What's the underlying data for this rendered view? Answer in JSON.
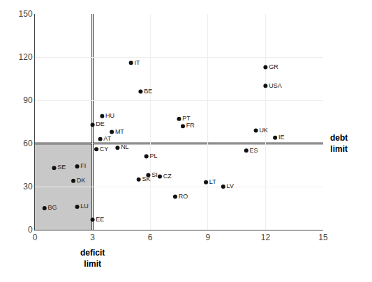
{
  "chart_data": {
    "type": "scatter",
    "labels": [
      "IT",
      "BE",
      "HU",
      "DE",
      "MT",
      "AT",
      "PT",
      "FR",
      "GR",
      "USA",
      "UK",
      "IE",
      "CY",
      "NL",
      "PL",
      "ES",
      "SI",
      "SK",
      "CZ",
      "LT",
      "LV",
      "RO",
      "SE",
      "FI",
      "DK",
      "BG",
      "LU",
      "EE"
    ],
    "x": [
      5.0,
      5.5,
      3.5,
      3.0,
      4.0,
      3.4,
      7.5,
      7.7,
      12.0,
      12.0,
      11.5,
      12.5,
      3.2,
      4.3,
      5.8,
      11.0,
      5.9,
      5.4,
      6.5,
      8.9,
      9.8,
      7.3,
      1.0,
      2.2,
      2.0,
      0.5,
      2.2,
      3.0
    ],
    "values": [
      116,
      96,
      79,
      73,
      68,
      63,
      77,
      72,
      113,
      100,
      69,
      64,
      56,
      57,
      51,
      55,
      38,
      35,
      37,
      33,
      30,
      23,
      43,
      44,
      34,
      15,
      16,
      7
    ],
    "color": "#111111",
    "xlim": [
      0,
      15
    ],
    "ylim": [
      0,
      150
    ],
    "xticks": [
      0,
      3,
      6,
      9,
      12,
      15
    ],
    "yticks": [
      0,
      30,
      60,
      90,
      120,
      150
    ],
    "grid": true,
    "shaded_region": {
      "x": [
        0,
        3
      ],
      "y": [
        0,
        60
      ],
      "color": "#c8c8c8"
    },
    "reference_lines": [
      {
        "axis": "x",
        "value": 3,
        "color": "#000000"
      },
      {
        "axis": "y",
        "value": 60,
        "color": "#000000"
      }
    ],
    "annotations": [
      {
        "text": "deficit\nlimit",
        "x": 3,
        "y": 0
      },
      {
        "text": "debt\nlimit",
        "x": 15,
        "y": 60
      }
    ]
  }
}
